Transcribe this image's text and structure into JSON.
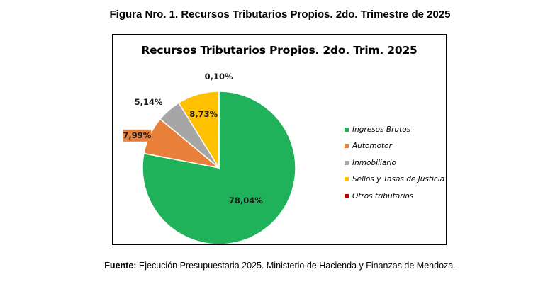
{
  "figure_title": "Figura Nro. 1. Recursos Tributarios Propios. 2do. Trimestre de 2025",
  "source": {
    "label": "Fuente:",
    "text": " Ejecución Presupuestaria 2025. Ministerio de Hacienda y Finanzas de Mendoza."
  },
  "chart_data": {
    "type": "pie",
    "title": "Recursos Tributarios Propios. 2do. Trim. 2025",
    "legend_position": "right",
    "slices": [
      {
        "name": "Ingresos Brutos",
        "value": 78.04,
        "label": "78,04%",
        "color": "#1fb25a"
      },
      {
        "name": "Automotor",
        "value": 7.99,
        "label": "7,99%",
        "color": "#e8803a"
      },
      {
        "name": "Inmobiliario",
        "value": 5.14,
        "label": "5,14%",
        "color": "#a6a6a6"
      },
      {
        "name": "Sellos y Tasas de Justicia",
        "value": 8.73,
        "label": "8,73%",
        "color": "#ffc000"
      },
      {
        "name": "Otros tributarios",
        "value": 0.1,
        "label": "0,10%",
        "color": "#c00000"
      }
    ]
  }
}
